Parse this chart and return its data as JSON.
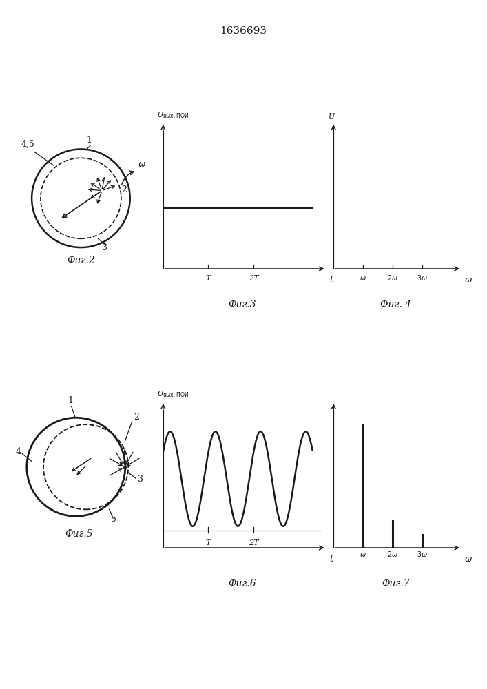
{
  "title": "1636693",
  "title_fontsize": 11,
  "fig2_label": "Фиг.2",
  "fig3_label": "Фиг.3",
  "fig4_label": "Фиг. 4",
  "fig5_label": "Фиг.5",
  "fig6_label": "Фиг.6",
  "fig7_label": "Фиг.7",
  "label_fontsize": 10,
  "bg_color": "#ffffff",
  "line_color": "#1a1a1a",
  "axis_label_fontsize": 9,
  "tick_label_fontsize": 8,
  "number_label_fontsize": 9
}
